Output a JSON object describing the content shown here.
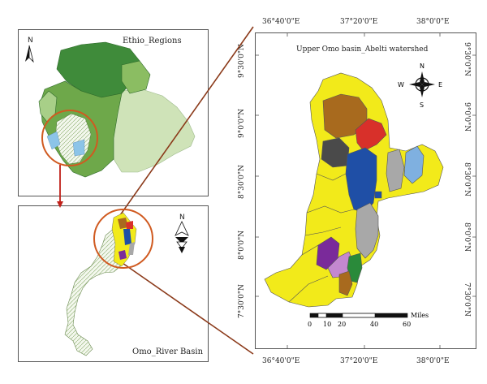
{
  "ethio_panel": {
    "title": "Ethio_Regions",
    "north_label": "N"
  },
  "omo_panel": {
    "title": "Omo_River Basin",
    "north_label": "N"
  },
  "abelti_panel": {
    "title": "Upper Omo basin_Abelti watershed",
    "compass": {
      "n": "N",
      "s": "S",
      "e": "E",
      "w": "W"
    },
    "top_lon_labels": [
      "36°40'0\"E",
      "37°20'0\"E",
      "38°0'0\"E"
    ],
    "bottom_lon_labels": [
      "36°40'0\"E",
      "37°20'0\"E",
      "38°0'0\"E"
    ],
    "left_lat_labels": [
      "9°30'0\"N",
      "9°0'0\"N",
      "8°30'0\"N",
      "8°0'0\"N",
      "7°30'0\"N"
    ],
    "right_lat_labels": [
      "9°30'0\"N",
      "9°0'0\"N",
      "8°30'0\"N",
      "8°0'0\"N",
      "7°30'0\"N"
    ],
    "scale_bar": {
      "ticks": [
        "0",
        "10",
        "20",
        "40",
        "60"
      ],
      "unit": "Miles"
    }
  },
  "colors": {
    "ethiopia_base": "#6ea84a",
    "ethiopia_dark": "#3f8b3a",
    "ethiopia_light": "#cfe3b8",
    "basin_hatch": "#e8f0e0",
    "subbasin_yellow": "#f2ea1a",
    "subbasin_brown": "#a86a1e",
    "subbasin_red": "#d8302a",
    "subbasin_darkgray": "#4a4a4a",
    "subbasin_blue": "#1f4fa6",
    "subbasin_lightblue": "#7fb0e0",
    "subbasin_gray": "#a8a8a8",
    "subbasin_purple": "#7a2a9a",
    "subbasin_pink": "#c488d0",
    "subbasin_green": "#2a8a3a",
    "leader_line": "#8b3a1a",
    "highlight_circle": "#d05a20"
  }
}
